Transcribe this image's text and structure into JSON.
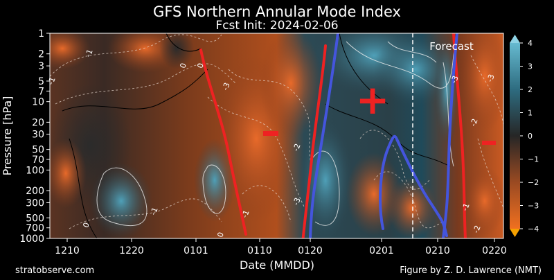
{
  "chart_data": {
    "type": "heatmap",
    "title": "GFS Northern Annular Mode Index",
    "subtitle": "Fcst Init: 2024-02-06",
    "xlabel": "Date (MMDD)",
    "ylabel": "Pressure [hPa]",
    "y_scale": "log",
    "ylim": [
      1000,
      1
    ],
    "x_ticks": [
      "1210",
      "1220",
      "0101",
      "0110",
      "0120",
      "0201",
      "0210",
      "0220"
    ],
    "y_ticks": [
      1,
      2,
      3,
      5,
      7,
      10,
      20,
      30,
      50,
      70,
      100,
      200,
      300,
      500,
      700,
      1000
    ],
    "colorbar": {
      "ticks": [
        4,
        3,
        2,
        1,
        0,
        -1,
        -2,
        -3,
        -4
      ],
      "range": [
        -4,
        4
      ],
      "colors": {
        "high": "#4a9ab0",
        "mid": "#333333",
        "low": "#e8622a"
      }
    },
    "forecast_label": "Forecast",
    "annotations": {
      "positive": "+",
      "negative": "−"
    },
    "contour_labels": [
      "-1",
      "0",
      "-3",
      "0",
      "-1",
      "-2",
      "-3",
      "-1",
      "0",
      "-1",
      "0",
      "-2",
      "-3",
      "-1",
      "-2",
      "-3"
    ],
    "colors": {
      "positive_outline": "#4455dd",
      "negative_outline": "#ee2222",
      "positive_fill": "#2f6f84",
      "negative_fill": "#c8531e",
      "background": "#000000"
    }
  },
  "footer": {
    "left": "stratobserve.com",
    "right": "Figure by Z. D. Lawrence (NMT)"
  }
}
